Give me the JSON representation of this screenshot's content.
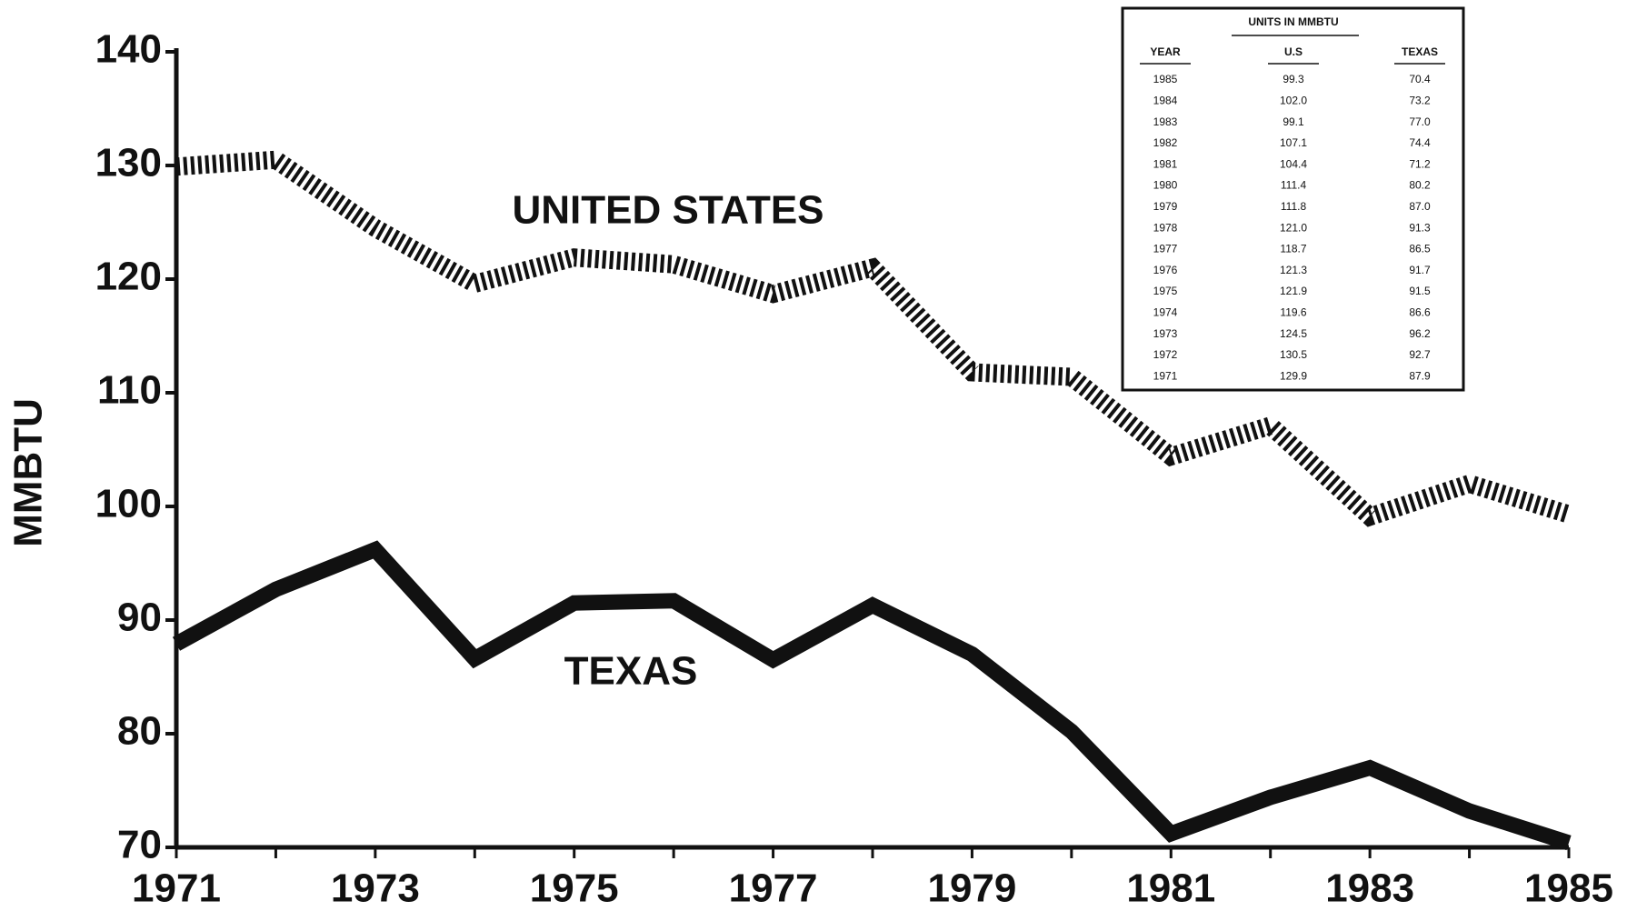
{
  "chart_data": {
    "type": "line",
    "y_label": "MMBTU",
    "categories": [
      "1971",
      null,
      "1973",
      null,
      "1975",
      null,
      "1977",
      null,
      "1979",
      null,
      "1981",
      null,
      "1983",
      null,
      "1985"
    ],
    "series": [
      {
        "name": "UNITED STATES",
        "color": "#111111",
        "style": "hatched",
        "values": [
          129.9,
          130.5,
          124.5,
          119.6,
          121.9,
          121.3,
          118.7,
          121.0,
          111.8,
          111.4,
          104.4,
          107.1,
          99.1,
          102.0,
          99.3
        ]
      },
      {
        "name": "TEXAS",
        "color": "#111111",
        "style": "solid",
        "values": [
          87.9,
          92.7,
          96.2,
          86.6,
          91.5,
          91.7,
          86.5,
          91.3,
          87.0,
          80.2,
          71.2,
          74.4,
          77.0,
          73.2,
          70.4
        ]
      }
    ],
    "ylim": [
      70,
      140
    ],
    "yticks": [
      70,
      80,
      90,
      100,
      110,
      120,
      130,
      140
    ],
    "grid": false
  },
  "table": {
    "title": "UNITS IN MMBTU",
    "headers": [
      "YEAR",
      "U.S",
      "TEXAS"
    ],
    "rows": [
      [
        "1985",
        "99.3",
        "70.4"
      ],
      [
        "1984",
        "102.0",
        "73.2"
      ],
      [
        "1983",
        "99.1",
        "77.0"
      ],
      [
        "1982",
        "107.1",
        "74.4"
      ],
      [
        "1981",
        "104.4",
        "71.2"
      ],
      [
        "1980",
        "111.4",
        "80.2"
      ],
      [
        "1979",
        "111.8",
        "87.0"
      ],
      [
        "1978",
        "121.0",
        "91.3"
      ],
      [
        "1977",
        "118.7",
        "86.5"
      ],
      [
        "1976",
        "121.3",
        "91.7"
      ],
      [
        "1975",
        "121.9",
        "91.5"
      ],
      [
        "1974",
        "119.6",
        "86.6"
      ],
      [
        "1973",
        "124.5",
        "96.2"
      ],
      [
        "1972",
        "130.5",
        "92.7"
      ],
      [
        "1971",
        "129.9",
        "87.9"
      ]
    ]
  }
}
